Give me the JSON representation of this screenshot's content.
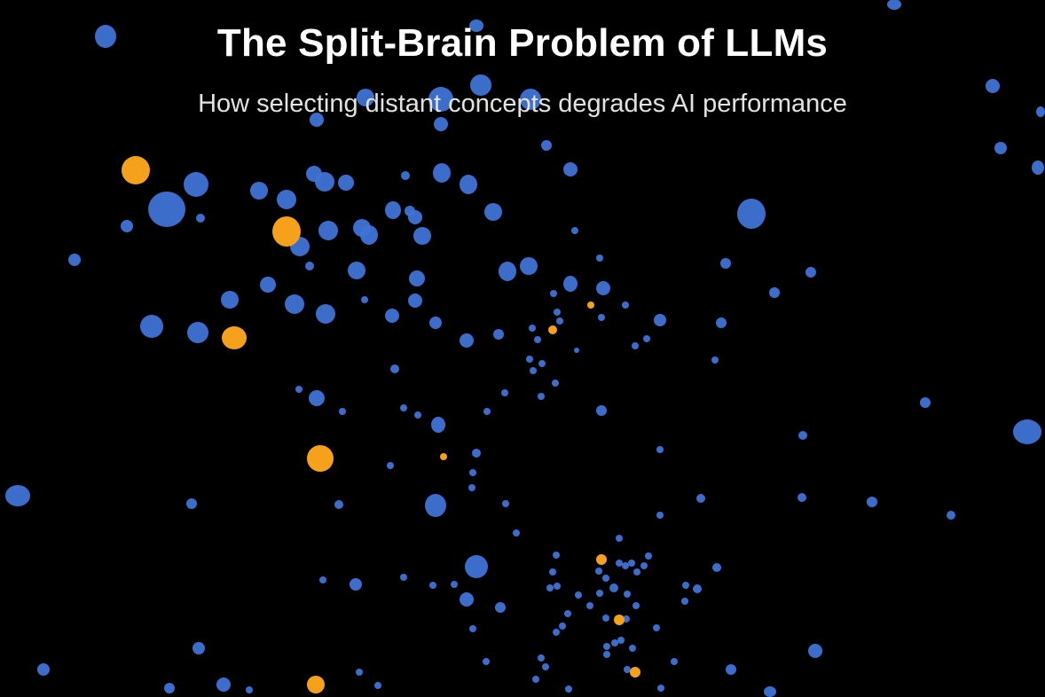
{
  "header": {
    "title": "The Split-Brain Problem of LLMs",
    "subtitle": "How selecting distant concepts degrades AI performance"
  },
  "colors": {
    "background": "#000000",
    "concept": "#3f73d6",
    "selected": "#f6a11b"
  },
  "chart_data": {
    "type": "scatter",
    "series": [
      {
        "role": "concept",
        "points": [
          [
            119,
            41,
            12,
            13
          ],
          [
            1008,
            5,
            8,
            6
          ],
          [
            537,
            29,
            8,
            7
          ],
          [
            1119,
            97,
            8,
            8
          ],
          [
            1173,
            126,
            5,
            6
          ],
          [
            1128,
            167,
            7,
            7
          ],
          [
            1170,
            189,
            7,
            8
          ],
          [
            357,
            135,
            8,
            8
          ],
          [
            497,
            140,
            8,
            8
          ],
          [
            616,
            164,
            6,
            6
          ],
          [
            643,
            191,
            8,
            8
          ],
          [
            498,
            195,
            10,
            11
          ],
          [
            528,
            208,
            10,
            11
          ],
          [
            457,
            198,
            5,
            5
          ],
          [
            221,
            208,
            14,
            14
          ],
          [
            188,
            236,
            21,
            20
          ],
          [
            292,
            215,
            10,
            10
          ],
          [
            323,
            225,
            11,
            11
          ],
          [
            354,
            196,
            9,
            9
          ],
          [
            366,
            205,
            11,
            11
          ],
          [
            390,
            206,
            9,
            9
          ],
          [
            443,
            237,
            9,
            10
          ],
          [
            468,
            245,
            8,
            8
          ],
          [
            556,
            239,
            10,
            10
          ],
          [
            847,
            241,
            16,
            17
          ],
          [
            143,
            255,
            7,
            7
          ],
          [
            226,
            246,
            5,
            5
          ],
          [
            338,
            278,
            11,
            11
          ],
          [
            370,
            260,
            11,
            11
          ],
          [
            408,
            257,
            10,
            10
          ],
          [
            416,
            265,
            10,
            11
          ],
          [
            476,
            266,
            10,
            10
          ],
          [
            462,
            238,
            6,
            6
          ],
          [
            648,
            260,
            4,
            4
          ],
          [
            84,
            293,
            7,
            7
          ],
          [
            402,
            305,
            10,
            10
          ],
          [
            349,
            300,
            5,
            5
          ],
          [
            572,
            306,
            10,
            11
          ],
          [
            596,
            300,
            10,
            10
          ],
          [
            818,
            297,
            6,
            6
          ],
          [
            914,
            307,
            6,
            6
          ],
          [
            302,
            321,
            9,
            9
          ],
          [
            470,
            314,
            9,
            9
          ],
          [
            676,
            291,
            4,
            4
          ],
          [
            643,
            320,
            8,
            9
          ],
          [
            680,
            325,
            8,
            8
          ],
          [
            624,
            331,
            4,
            4
          ],
          [
            171,
            368,
            13,
            13
          ],
          [
            223,
            375,
            12,
            12
          ],
          [
            259,
            338,
            10,
            10
          ],
          [
            332,
            343,
            11,
            11
          ],
          [
            367,
            354,
            11,
            11
          ],
          [
            411,
            338,
            4,
            4
          ],
          [
            442,
            356,
            8,
            8
          ],
          [
            468,
            339,
            8,
            8
          ],
          [
            491,
            364,
            7,
            7
          ],
          [
            526,
            384,
            8,
            8
          ],
          [
            562,
            377,
            6,
            6
          ],
          [
            873,
            330,
            6,
            6
          ],
          [
            705,
            344,
            4,
            4
          ],
          [
            628,
            352,
            4,
            4
          ],
          [
            631,
            362,
            4,
            4
          ],
          [
            678,
            358,
            4,
            4
          ],
          [
            744,
            361,
            7,
            7
          ],
          [
            716,
            390,
            4,
            4
          ],
          [
            729,
            382,
            4,
            4
          ],
          [
            813,
            364,
            6,
            6
          ],
          [
            600,
            370,
            4,
            4
          ],
          [
            606,
            383,
            4,
            4
          ],
          [
            650,
            395,
            3,
            3
          ],
          [
            597,
            405,
            4,
            4
          ],
          [
            611,
            410,
            4,
            4
          ],
          [
            601,
            418,
            4,
            4
          ],
          [
            626,
            432,
            4,
            4
          ],
          [
            806,
            406,
            4,
            4
          ],
          [
            445,
            416,
            5,
            5
          ],
          [
            337,
            439,
            4,
            4
          ],
          [
            357,
            449,
            9,
            9
          ],
          [
            386,
            464,
            4,
            4
          ],
          [
            455,
            460,
            4,
            4
          ],
          [
            471,
            468,
            4,
            4
          ],
          [
            494,
            479,
            8,
            9
          ],
          [
            569,
            443,
            4,
            4
          ],
          [
            610,
            447,
            4,
            4
          ],
          [
            549,
            464,
            4,
            4
          ],
          [
            678,
            463,
            6,
            6
          ],
          [
            1043,
            454,
            6,
            6
          ],
          [
            1158,
            487,
            16,
            14
          ],
          [
            905,
            491,
            5,
            5
          ],
          [
            744,
            507,
            4,
            4
          ],
          [
            440,
            525,
            4,
            4
          ],
          [
            537,
            511,
            5,
            5
          ],
          [
            533,
            533,
            4,
            4
          ],
          [
            532,
            550,
            4,
            4
          ],
          [
            20,
            559,
            14,
            12
          ],
          [
            216,
            568,
            6,
            6
          ],
          [
            382,
            569,
            5,
            5
          ],
          [
            491,
            570,
            12,
            13
          ],
          [
            570,
            568,
            4,
            4
          ],
          [
            744,
            581,
            4,
            4
          ],
          [
            790,
            562,
            5,
            5
          ],
          [
            904,
            561,
            5,
            5
          ],
          [
            983,
            566,
            6,
            6
          ],
          [
            1072,
            581,
            5,
            5
          ],
          [
            582,
            601,
            4,
            4
          ],
          [
            698,
            607,
            4,
            4
          ],
          [
            627,
            626,
            4,
            4
          ],
          [
            537,
            639,
            13,
            13
          ],
          [
            364,
            654,
            4,
            4
          ],
          [
            401,
            659,
            7,
            7
          ],
          [
            455,
            651,
            4,
            4
          ],
          [
            488,
            660,
            4,
            4
          ],
          [
            512,
            659,
            4,
            4
          ],
          [
            526,
            676,
            8,
            8
          ],
          [
            564,
            685,
            6,
            6
          ],
          [
            623,
            645,
            4,
            4
          ],
          [
            628,
            661,
            4,
            4
          ],
          [
            620,
            663,
            4,
            4
          ],
          [
            652,
            671,
            4,
            4
          ],
          [
            675,
            644,
            4,
            4
          ],
          [
            683,
            652,
            4,
            4
          ],
          [
            698,
            635,
            4,
            4
          ],
          [
            705,
            638,
            4,
            4
          ],
          [
            712,
            635,
            4,
            4
          ],
          [
            731,
            627,
            4,
            4
          ],
          [
            726,
            638,
            4,
            4
          ],
          [
            692,
            663,
            5,
            5
          ],
          [
            676,
            669,
            4,
            4
          ],
          [
            707,
            670,
            4,
            4
          ],
          [
            717,
            683,
            4,
            4
          ],
          [
            665,
            683,
            4,
            4
          ],
          [
            640,
            692,
            4,
            4
          ],
          [
            627,
            713,
            4,
            4
          ],
          [
            634,
            706,
            4,
            4
          ],
          [
            683,
            697,
            4,
            4
          ],
          [
            706,
            698,
            4,
            4
          ],
          [
            684,
            729,
            4,
            4
          ],
          [
            693,
            725,
            4,
            4
          ],
          [
            700,
            722,
            4,
            4
          ],
          [
            684,
            738,
            4,
            4
          ],
          [
            740,
            708,
            4,
            4
          ],
          [
            773,
            660,
            4,
            4
          ],
          [
            786,
            664,
            5,
            5
          ],
          [
            772,
            678,
            4,
            4
          ],
          [
            808,
            640,
            5,
            5
          ],
          [
            760,
            746,
            4,
            4
          ],
          [
            824,
            755,
            6,
            6
          ],
          [
            919,
            734,
            8,
            8
          ],
          [
            224,
            731,
            7,
            7
          ],
          [
            49,
            755,
            7,
            7
          ],
          [
            191,
            776,
            6,
            6
          ],
          [
            252,
            772,
            8,
            8
          ],
          [
            281,
            778,
            4,
            4
          ],
          [
            405,
            758,
            4,
            4
          ],
          [
            426,
            773,
            4,
            4
          ],
          [
            548,
            746,
            4,
            4
          ],
          [
            533,
            709,
            4,
            4
          ],
          [
            610,
            742,
            4,
            4
          ],
          [
            615,
            752,
            4,
            4
          ],
          [
            604,
            766,
            4,
            4
          ],
          [
            641,
            777,
            4,
            4
          ],
          [
            713,
            731,
            4,
            4
          ],
          [
            707,
            755,
            4,
            4
          ],
          [
            745,
            776,
            4,
            4
          ],
          [
            868,
            780,
            7,
            6
          ],
          [
            718,
            645,
            4,
            4
          ],
          [
            497,
            112,
            14,
            14
          ],
          [
            542,
            96,
            12,
            12
          ],
          [
            412,
            110,
            10,
            10
          ],
          [
            598,
            112,
            12,
            12
          ]
        ]
      },
      {
        "role": "selected",
        "points": [
          [
            153,
            192,
            16,
            16
          ],
          [
            323,
            261,
            16,
            17
          ],
          [
            264,
            381,
            14,
            13
          ],
          [
            361,
            517,
            15,
            15
          ],
          [
            666,
            344,
            4,
            4
          ],
          [
            623,
            372,
            5,
            5
          ],
          [
            500,
            515,
            4,
            4
          ],
          [
            678,
            631,
            6,
            6
          ],
          [
            698,
            699,
            6,
            6
          ],
          [
            716,
            758,
            6,
            6
          ],
          [
            356,
            772,
            10,
            10
          ]
        ]
      }
    ]
  }
}
